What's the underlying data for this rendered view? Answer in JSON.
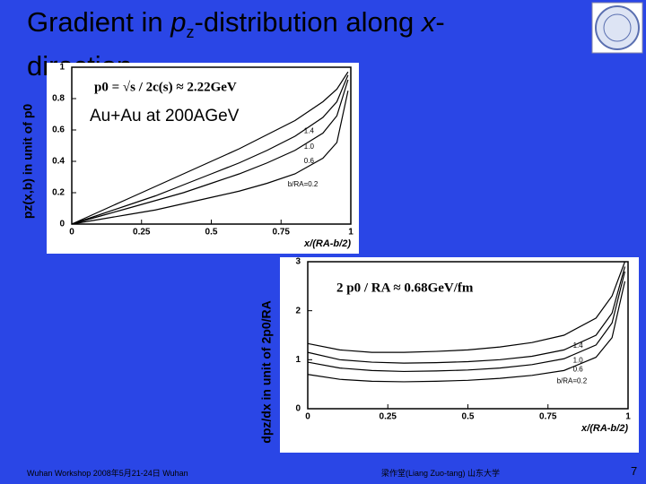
{
  "slide": {
    "title": [
      "Gradient in ",
      "p",
      "z",
      "-distribution along ",
      "x",
      "-direction"
    ],
    "footer_left": "Wuhan Workshop   2008年5月21-24日 Wuhan",
    "footer_right": "梁作堂(Liang Zuo-tang)   山东大学",
    "page": "7",
    "note": "Au+Au at 200AGeV"
  },
  "chart_data": [
    {
      "type": "line",
      "ylabel": "pz(x,b) in unit of p0",
      "xlabel": "x/(RA-b/2)",
      "annotation": "p0 = √s / 2c(s) ≈ 2.22GeV",
      "x": [
        0,
        0.1,
        0.2,
        0.3,
        0.4,
        0.5,
        0.6,
        0.7,
        0.8,
        0.9,
        0.95,
        0.99
      ],
      "series": [
        {
          "name": "1.4",
          "color": "#000000",
          "values": [
            0,
            0.08,
            0.16,
            0.24,
            0.32,
            0.4,
            0.48,
            0.57,
            0.66,
            0.78,
            0.86,
            0.97
          ]
        },
        {
          "name": "1.0",
          "color": "#000000",
          "values": [
            0,
            0.06,
            0.12,
            0.18,
            0.25,
            0.32,
            0.39,
            0.47,
            0.56,
            0.68,
            0.78,
            0.95
          ]
        },
        {
          "name": "0.6",
          "color": "#000000",
          "values": [
            0,
            0.05,
            0.1,
            0.15,
            0.2,
            0.26,
            0.32,
            0.39,
            0.47,
            0.58,
            0.69,
            0.92
          ]
        },
        {
          "name": "b/RA=0.2",
          "color": "#000000",
          "values": [
            0,
            0.03,
            0.06,
            0.09,
            0.13,
            0.17,
            0.21,
            0.26,
            0.32,
            0.42,
            0.52,
            0.85
          ]
        }
      ],
      "xlim": [
        0,
        1
      ],
      "ylim": [
        0,
        1
      ],
      "xticks": [
        0,
        0.25,
        0.5,
        0.75,
        1
      ],
      "yticks": [
        0,
        0.2,
        0.4,
        0.6,
        0.8,
        1
      ]
    },
    {
      "type": "line",
      "ylabel": "dpz/dx in unit of 2p0/RA",
      "xlabel": "x/(RA-b/2)",
      "annotation": "2 p0 / RA ≈ 0.68GeV/fm",
      "x": [
        0,
        0.1,
        0.2,
        0.3,
        0.4,
        0.5,
        0.6,
        0.7,
        0.8,
        0.9,
        0.95,
        0.99
      ],
      "series": [
        {
          "name": "1.4",
          "color": "#000000",
          "values": [
            1.33,
            1.2,
            1.15,
            1.15,
            1.17,
            1.2,
            1.26,
            1.35,
            1.5,
            1.85,
            2.3,
            3.0
          ]
        },
        {
          "name": "1.0",
          "color": "#000000",
          "values": [
            1.15,
            1.0,
            0.95,
            0.93,
            0.94,
            0.96,
            1.0,
            1.07,
            1.2,
            1.5,
            1.95,
            2.9
          ]
        },
        {
          "name": "0.6",
          "color": "#000000",
          "values": [
            0.95,
            0.83,
            0.78,
            0.76,
            0.77,
            0.79,
            0.83,
            0.9,
            1.02,
            1.3,
            1.75,
            2.8
          ]
        },
        {
          "name": "b/RA=0.2",
          "color": "#000000",
          "values": [
            0.7,
            0.6,
            0.56,
            0.55,
            0.56,
            0.58,
            0.62,
            0.68,
            0.78,
            1.05,
            1.45,
            2.6
          ]
        }
      ],
      "xlim": [
        0,
        1
      ],
      "ylim": [
        0,
        3
      ],
      "xticks": [
        0,
        0.25,
        0.5,
        0.75,
        1
      ],
      "yticks": [
        0,
        1,
        2,
        3
      ]
    }
  ]
}
